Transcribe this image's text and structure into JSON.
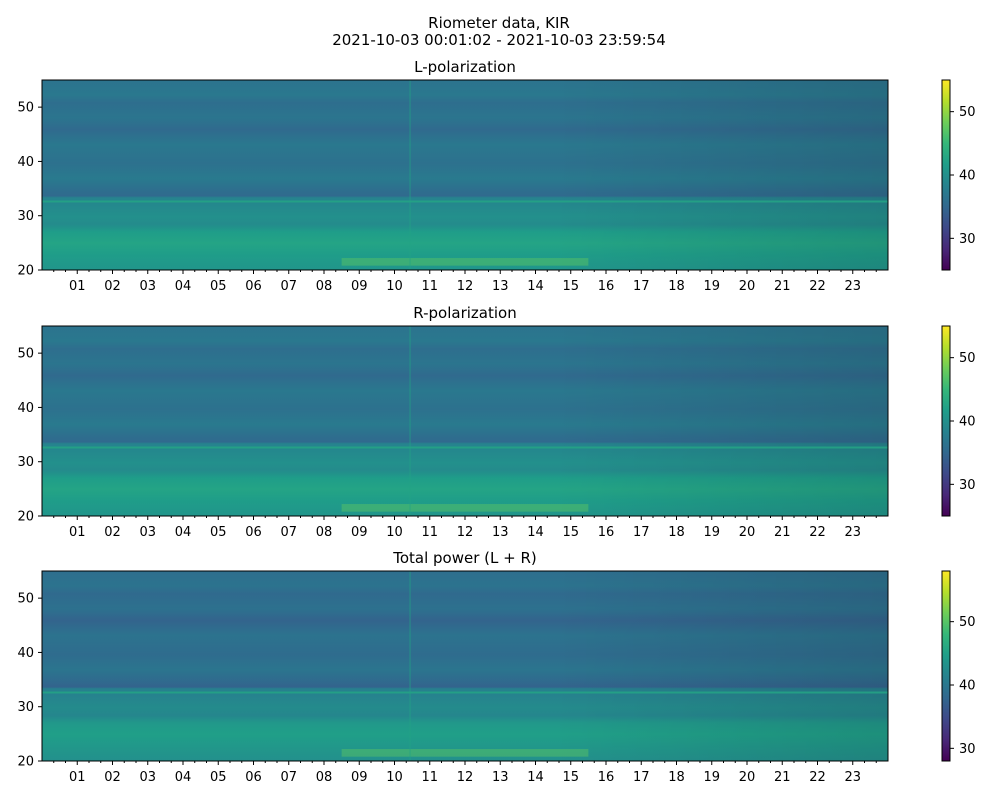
{
  "figure": {
    "title_line1": "Riometer data, KIR",
    "title_line2": "2021-10-03 00:01:02 - 2021-10-03 23:59:54"
  },
  "chart_data": [
    {
      "type": "heatmap",
      "title": "L-polarization",
      "xlabel": "",
      "ylabel": "",
      "x_range": [
        "2021-10-03 00:01:02",
        "2021-10-03 23:59:54"
      ],
      "x_tick_labels": [
        "01",
        "02",
        "03",
        "04",
        "05",
        "06",
        "07",
        "08",
        "09",
        "10",
        "11",
        "12",
        "13",
        "14",
        "15",
        "16",
        "17",
        "18",
        "19",
        "20",
        "21",
        "22",
        "23"
      ],
      "ylim": [
        20,
        55
      ],
      "y_ticks": [
        20,
        30,
        40,
        50
      ],
      "colorbar": {
        "colormap": "viridis",
        "range": [
          25,
          55
        ],
        "ticks": [
          30,
          40,
          50
        ]
      }
    },
    {
      "type": "heatmap",
      "title": "R-polarization",
      "xlabel": "",
      "ylabel": "",
      "x_range": [
        "2021-10-03 00:01:02",
        "2021-10-03 23:59:54"
      ],
      "x_tick_labels": [
        "01",
        "02",
        "03",
        "04",
        "05",
        "06",
        "07",
        "08",
        "09",
        "10",
        "11",
        "12",
        "13",
        "14",
        "15",
        "16",
        "17",
        "18",
        "19",
        "20",
        "21",
        "22",
        "23"
      ],
      "ylim": [
        20,
        55
      ],
      "y_ticks": [
        20,
        30,
        40,
        50
      ],
      "colorbar": {
        "colormap": "viridis",
        "range": [
          25,
          55
        ],
        "ticks": [
          30,
          40,
          50
        ]
      }
    },
    {
      "type": "heatmap",
      "title": "Total power (L + R)",
      "xlabel": "",
      "ylabel": "",
      "x_range": [
        "2021-10-03 00:01:02",
        "2021-10-03 23:59:54"
      ],
      "x_tick_labels": [
        "01",
        "02",
        "03",
        "04",
        "05",
        "06",
        "07",
        "08",
        "09",
        "10",
        "11",
        "12",
        "13",
        "14",
        "15",
        "16",
        "17",
        "18",
        "19",
        "20",
        "21",
        "22",
        "23"
      ],
      "ylim": [
        20,
        55
      ],
      "y_ticks": [
        20,
        30,
        40,
        50
      ],
      "colorbar": {
        "colormap": "viridis",
        "range": [
          28,
          58
        ],
        "ticks": [
          30,
          40,
          50
        ]
      }
    }
  ]
}
